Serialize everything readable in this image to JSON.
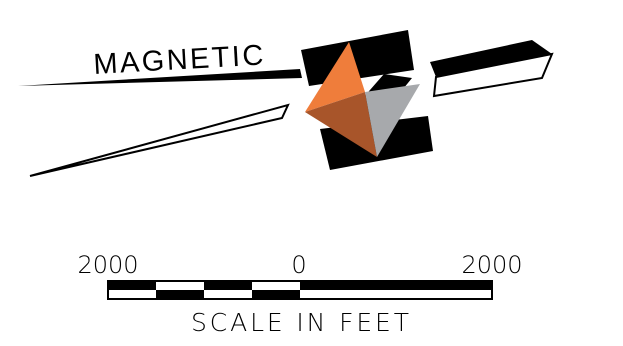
{
  "north_arrow": {
    "label": "MAGNETIC",
    "colors": {
      "outline": "#000000",
      "fill_light": "#ffffff",
      "orange": "#ef7d3b",
      "rust": "#a8552a",
      "gray": "#a7a9ac"
    }
  },
  "scale_bar": {
    "tick_labels": [
      "2000",
      "0",
      "2000"
    ],
    "title": "SCALE IN FEET",
    "colors": {
      "dark": "#000000",
      "light": "#ffffff"
    }
  }
}
